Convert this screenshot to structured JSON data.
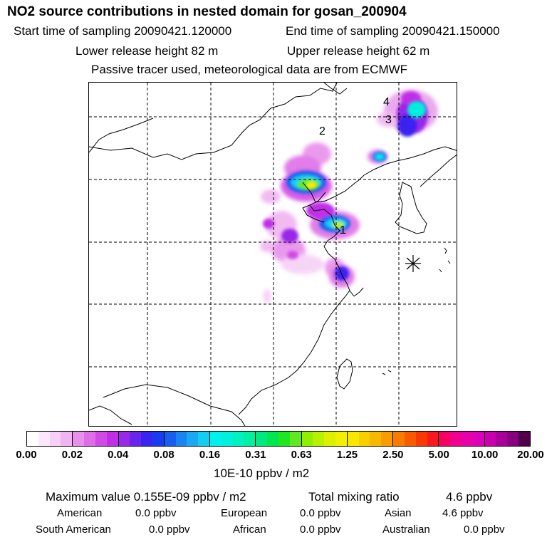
{
  "header": {
    "title": "NO2 source contributions in nested domain for gosan_200904",
    "start_time": "Start time of sampling 20090421.120000",
    "end_time": "End time of sampling 20090421.150000",
    "lower_release": "Lower release height   82 m",
    "upper_release": "Upper release height   62 m",
    "tracer_note": "Passive tracer used, meteorological data are from ECMWF"
  },
  "map": {
    "source_labels": [
      "1",
      "2",
      "3",
      "4"
    ],
    "receptor_marker": "asterisk-icon"
  },
  "colorbar": {
    "tick_labels": [
      "0.00",
      "0.02",
      "0.04",
      "0.08",
      "0.16",
      "0.31",
      "0.63",
      "1.25",
      "2.50",
      "5.00",
      "10.00",
      "20.00"
    ],
    "units": "10E-10 ppbv / m2",
    "colors": [
      [
        "#ffffff",
        "#fbe8fb",
        "#f6d0f6",
        "#f0b4f0"
      ],
      [
        "#e890ec",
        "#de6ee6",
        "#d24ae6",
        "#c12ee8"
      ],
      [
        "#9a28e8",
        "#6a24ec",
        "#3a24f0",
        "#1a3cf0"
      ],
      [
        "#1a5ef0",
        "#1a84f0",
        "#1aa8f0",
        "#14cef0"
      ],
      [
        "#00f0f0",
        "#00f0dc",
        "#00f0c0",
        "#00f0a0"
      ],
      [
        "#00e880",
        "#00e850",
        "#20e820",
        "#60e820"
      ],
      [
        "#90f000",
        "#b8f000",
        "#dcf000",
        "#f0f000"
      ],
      [
        "#f8e800",
        "#f8d000",
        "#f8b800",
        "#f89c00"
      ],
      [
        "#f87c00",
        "#f85a00",
        "#f83a00",
        "#f81820"
      ],
      [
        "#f80060",
        "#f00090",
        "#e800a8",
        "#dc00b8"
      ],
      [
        "#c800b0",
        "#a80098",
        "#880080",
        "#500048"
      ]
    ]
  },
  "footer": {
    "max_value": "Maximum value  0.155E-09 ppbv / m2",
    "total_mixing": "Total mixing ratio",
    "total_mixing_value": "4.6 ppbv",
    "regions": [
      {
        "name": "American",
        "value": "0.0 ppbv"
      },
      {
        "name": "European",
        "value": "0.0 ppbv"
      },
      {
        "name": "Asian",
        "value": "4.6 ppbv"
      },
      {
        "name": "South American",
        "value": "0.0 ppbv"
      },
      {
        "name": "African",
        "value": "0.0 ppbv"
      },
      {
        "name": "Australian",
        "value": "0.0 ppbv"
      }
    ]
  }
}
